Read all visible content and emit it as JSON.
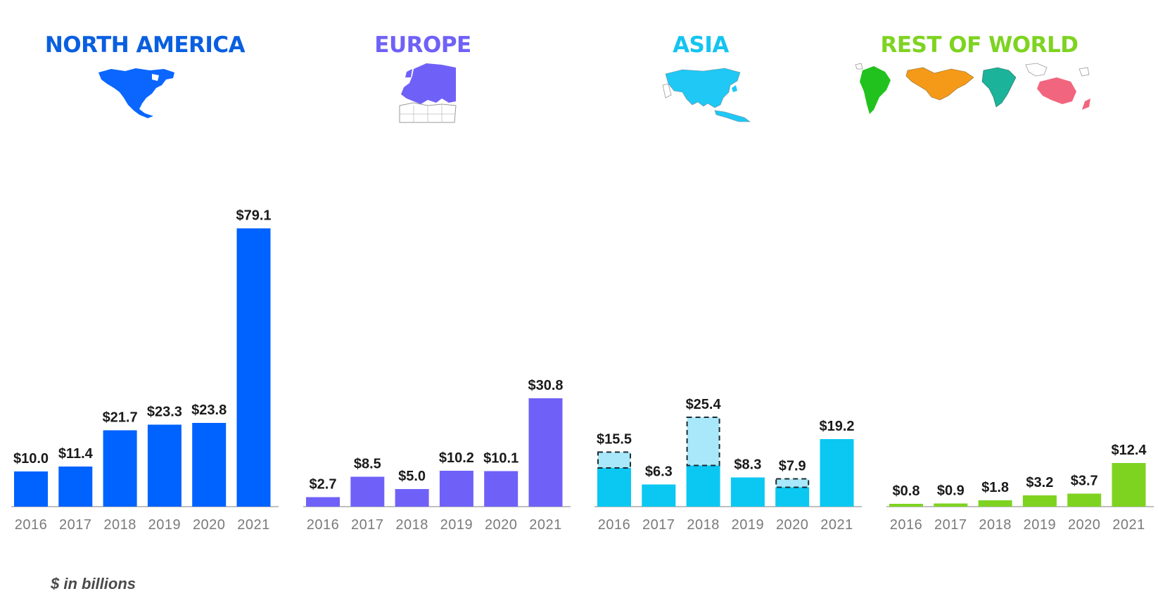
{
  "footnote": "$ in billions",
  "chart_data": [
    {
      "type": "bar",
      "title": "NORTH AMERICA",
      "icon": "north-america-map-icon",
      "color": "#0062FF",
      "categories": [
        "2016",
        "2017",
        "2018",
        "2019",
        "2020",
        "2021"
      ],
      "values": [
        10.0,
        11.4,
        21.7,
        23.3,
        23.8,
        79.1
      ],
      "labels": [
        "$10.0",
        "$11.4",
        "$21.7",
        "$23.3",
        "$23.8",
        "$79.1"
      ],
      "ylim": [
        0,
        80
      ]
    },
    {
      "type": "bar",
      "title": "EUROPE",
      "icon": "europe-map-icon",
      "color": "#6F61F7",
      "categories": [
        "2016",
        "2017",
        "2018",
        "2019",
        "2020",
        "2021"
      ],
      "values": [
        2.7,
        8.5,
        5.0,
        10.2,
        10.1,
        30.8
      ],
      "labels": [
        "$2.7",
        "$8.5",
        "$5.0",
        "$10.2",
        "$10.1",
        "$30.8"
      ],
      "ylim": [
        0,
        80
      ]
    },
    {
      "type": "bar",
      "title": "ASIA",
      "icon": "asia-map-icon",
      "color": "#0BC8F2",
      "highlight_color": "#A9E8FA",
      "categories": [
        "2016",
        "2017",
        "2018",
        "2019",
        "2020",
        "2021"
      ],
      "values": [
        15.5,
        6.3,
        25.4,
        8.3,
        7.9,
        19.2
      ],
      "solid_values": [
        11.0,
        6.3,
        11.7,
        8.3,
        5.5,
        19.2
      ],
      "labels": [
        "$15.5",
        "$6.3",
        "$25.4",
        "$8.3",
        "$7.9",
        "$19.2"
      ],
      "ylim": [
        0,
        80
      ]
    },
    {
      "type": "bar",
      "title": "REST OF WORLD",
      "icon": "rest-of-world-map-icon",
      "color": "#7ED321",
      "categories": [
        "2016",
        "2017",
        "2018",
        "2019",
        "2020",
        "2021"
      ],
      "values": [
        0.8,
        0.9,
        1.8,
        3.2,
        3.7,
        12.4
      ],
      "labels": [
        "$0.8",
        "$0.9",
        "$1.8",
        "$3.2",
        "$3.7",
        "$12.4"
      ],
      "ylim": [
        0,
        80
      ]
    }
  ]
}
